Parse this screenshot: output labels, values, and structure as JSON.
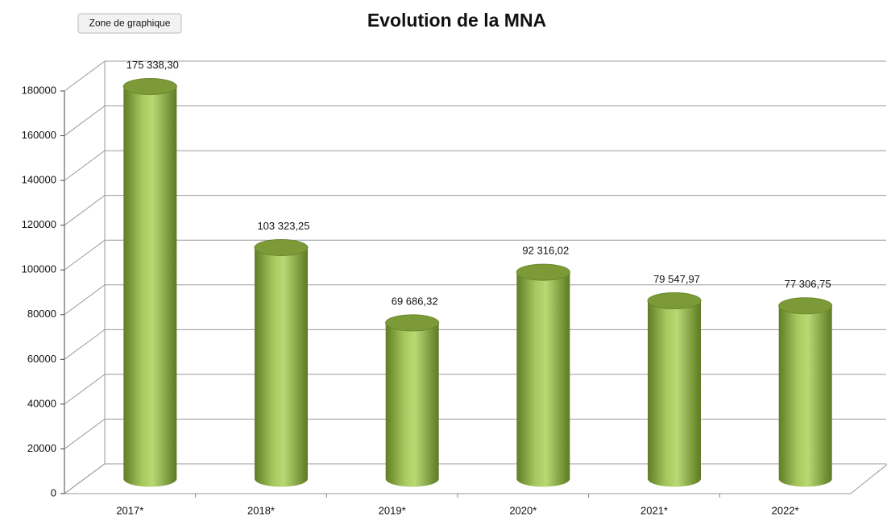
{
  "chart_data": {
    "type": "bar",
    "title": "Evolution de la MNA",
    "annotation": "Zone de graphique",
    "categories": [
      "2017*",
      "2018*",
      "2019*",
      "2020*",
      "2021*",
      "2022*"
    ],
    "values": [
      175338.3,
      103323.25,
      69686.32,
      92316.02,
      79547.97,
      77306.75
    ],
    "value_labels": [
      "175 338,30",
      "103 323,25",
      "69 686,32",
      "92 316,02",
      "79 547,97",
      "77 306,75"
    ],
    "color": "#8fb04a",
    "ylim": [
      0,
      180000
    ],
    "yticks": [
      0,
      20000,
      40000,
      60000,
      80000,
      100000,
      120000,
      140000,
      160000,
      180000
    ],
    "grid": true
  }
}
